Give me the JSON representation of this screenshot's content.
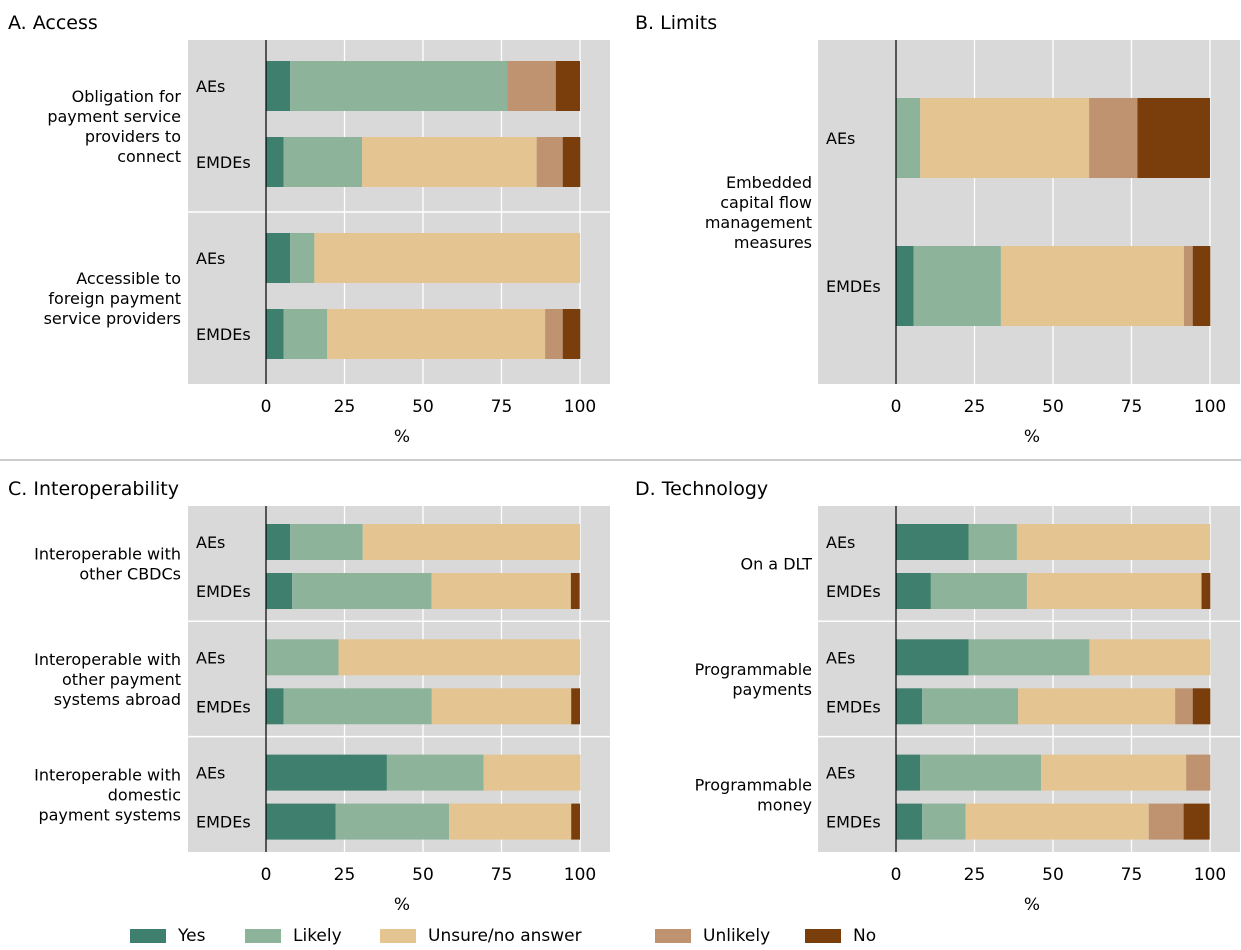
{
  "chart_data": [
    {
      "type": "bar",
      "orientation": "horizontal",
      "stacked": true,
      "title": "A. Access",
      "xlabel": "%",
      "xlim": [
        -25,
        100
      ],
      "xticks": [
        "0",
        "25",
        "50",
        "75",
        "100"
      ],
      "grid": true,
      "groups": [
        {
          "label": "Obligation for payment service providers to connect",
          "label_lines": [
            "Obligation for",
            "payment service",
            "providers to",
            "connect"
          ],
          "rows": [
            {
              "category": "AEs",
              "values": [
                7.7,
                69.2,
                0,
                15.4,
                7.7
              ]
            },
            {
              "category": "EMDEs",
              "values": [
                5.6,
                25.0,
                55.6,
                8.3,
                5.6
              ]
            }
          ]
        },
        {
          "label": "Accessible to foreign payment service providers",
          "label_lines": [
            "Accessible to",
            "foreign payment",
            "service providers"
          ],
          "rows": [
            {
              "category": "AEs",
              "values": [
                7.7,
                7.7,
                84.6,
                0,
                0
              ]
            },
            {
              "category": "EMDEs",
              "values": [
                5.6,
                13.9,
                69.4,
                5.6,
                5.6
              ]
            }
          ]
        }
      ]
    },
    {
      "type": "bar",
      "orientation": "horizontal",
      "stacked": true,
      "title": "B. Limits",
      "xlabel": "%",
      "xlim": [
        -25,
        100
      ],
      "xticks": [
        "0",
        "25",
        "50",
        "75",
        "100"
      ],
      "grid": true,
      "groups": [
        {
          "label": "Embedded capital flow management measures",
          "label_lines": [
            "Embedded",
            "capital flow",
            "management",
            "measures"
          ],
          "rows": [
            {
              "category": "AEs",
              "values": [
                0,
                7.7,
                53.8,
                15.4,
                23.1
              ]
            },
            {
              "category": "EMDEs",
              "values": [
                5.6,
                27.8,
                58.3,
                2.8,
                5.6
              ]
            }
          ]
        }
      ]
    },
    {
      "type": "bar",
      "orientation": "horizontal",
      "stacked": true,
      "title": "C. Interoperability",
      "xlabel": "%",
      "xlim": [
        -25,
        100
      ],
      "xticks": [
        "0",
        "25",
        "50",
        "75",
        "100"
      ],
      "grid": true,
      "groups": [
        {
          "label": "Interoperable with other CBDCs",
          "label_lines": [
            "Interoperable with",
            "other CBDCs"
          ],
          "rows": [
            {
              "category": "AEs",
              "values": [
                7.7,
                23.1,
                69.2,
                0,
                0
              ]
            },
            {
              "category": "EMDEs",
              "values": [
                8.3,
                44.4,
                44.4,
                0,
                2.8
              ]
            }
          ]
        },
        {
          "label": "Interoperable with other payment systems abroad",
          "label_lines": [
            "Interoperable with",
            "other payment",
            "systems abroad"
          ],
          "rows": [
            {
              "category": "AEs",
              "values": [
                0,
                23.1,
                76.9,
                0,
                0
              ]
            },
            {
              "category": "EMDEs",
              "values": [
                5.6,
                47.2,
                44.4,
                0,
                2.8
              ]
            }
          ]
        },
        {
          "label": "Interoperable with domestic payment systems",
          "label_lines": [
            "Interoperable with",
            "domestic",
            "payment systems"
          ],
          "rows": [
            {
              "category": "AEs",
              "values": [
                38.5,
                30.8,
                30.8,
                0,
                0
              ]
            },
            {
              "category": "EMDEs",
              "values": [
                22.2,
                36.1,
                38.9,
                0,
                2.8
              ]
            }
          ]
        }
      ]
    },
    {
      "type": "bar",
      "orientation": "horizontal",
      "stacked": true,
      "title": "D. Technology",
      "xlabel": "%",
      "xlim": [
        -25,
        100
      ],
      "xticks": [
        "0",
        "25",
        "50",
        "75",
        "100"
      ],
      "grid": true,
      "groups": [
        {
          "label": "On a DLT",
          "label_lines": [
            "On a DLT"
          ],
          "rows": [
            {
              "category": "AEs",
              "values": [
                23.1,
                15.4,
                61.5,
                0,
                0
              ]
            },
            {
              "category": "EMDEs",
              "values": [
                11.1,
                30.6,
                55.6,
                0,
                2.8
              ]
            }
          ]
        },
        {
          "label": "Programmable payments",
          "label_lines": [
            "Programmable",
            "payments"
          ],
          "rows": [
            {
              "category": "AEs",
              "values": [
                23.1,
                38.5,
                38.5,
                0,
                0
              ]
            },
            {
              "category": "EMDEs",
              "values": [
                8.3,
                30.6,
                50.0,
                5.6,
                5.6
              ]
            }
          ]
        },
        {
          "label": "Programmable money",
          "label_lines": [
            "Programmable",
            "money"
          ],
          "rows": [
            {
              "category": "AEs",
              "values": [
                7.7,
                38.5,
                46.2,
                7.7,
                0
              ]
            },
            {
              "category": "EMDEs",
              "values": [
                8.3,
                13.9,
                58.3,
                11.1,
                8.3
              ]
            }
          ]
        }
      ]
    }
  ],
  "legend": [
    {
      "name": "Yes",
      "color": "#3f7f6d"
    },
    {
      "name": "Likely",
      "color": "#8db39b"
    },
    {
      "name": "Unsure/no answer",
      "color": "#e4c591"
    },
    {
      "name": "Unlikely",
      "color": "#bf9370"
    },
    {
      "name": "No",
      "color": "#7a3d0c"
    }
  ]
}
